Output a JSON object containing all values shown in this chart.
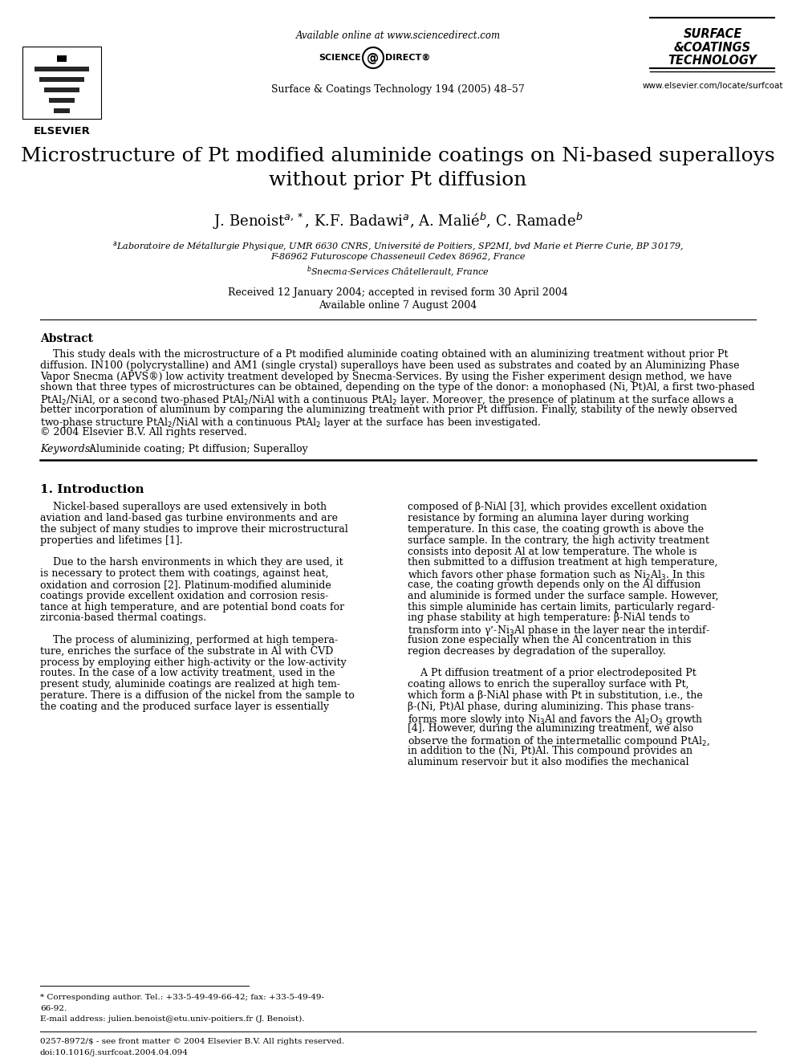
{
  "bg_color": "#ffffff",
  "title_line1": "Microstructure of Pt modified aluminide coatings on Ni-based superalloys",
  "title_line2": "without prior Pt diffusion",
  "authors": "J. Benoist$^{a,*}$, K.F. Badawi$^{a}$, A. Malié$^{b}$, C. Ramade$^{b}$",
  "affil_a": "$^{a}$Laboratoire de Métallurgie Physique, UMR 6630 CNRS, Université de Poitiers, SP2MI, bvd Marie et Pierre Curie, BP 30179,",
  "affil_a2": "F-86962 Futuroscope Chasseneuil Cedex 86962, France",
  "affil_b": "$^{b}$Snecma-Services Châtellerault, France",
  "received": "Received 12 January 2004; accepted in revised form 30 April 2004",
  "available": "Available online 7 August 2004",
  "journal": "Surface & Coatings Technology 194 (2005) 48–57",
  "available_online": "Available online at www.sciencedirect.com",
  "www": "www.elsevier.com/locate/surfcoat",
  "abstract_title": "Abstract",
  "abstract_text": "    This study deals with the microstructure of a Pt modified aluminide coating obtained with an aluminizing treatment without prior Pt diffusion. IN100 (polycrystalline) and AM1 (single crystal) superalloys have been used as substrates and coated by an Aluminizing Phase Vapor Snecma (APVS®) low activity treatment developed by Snecma-Services. By using the Fisher experiment design method, we have shown that three types of microstructures can be obtained, depending on the type of the donor: a monophased (Ni, Pt)Al, a first two-phased PtAl$_2$/NiAl, or a second two-phased PtAl$_2$/NiAl with a continuous PtAl$_2$ layer. Moreover, the presence of platinum at the surface allows a better incorporation of aluminum by comparing the aluminizing treatment with prior Pt diffusion. Finally, stability of the newly observed two-phase structure PtAl$_2$/NiAl with a continuous PtAl$_2$ layer at the surface has been investigated.",
  "abstract_copy": "© 2004 Elsevier B.V. All rights reserved.",
  "keywords_label": "Keywords:",
  "keywords_text": " Aluminide coating; Pt diffusion; Superalloy",
  "section1_title": "1. Introduction",
  "intro_col1_p1": "    Nickel-based superalloys are used extensively in both aviation and land-based gas turbine environments and are the subject of many studies to improve their microstructural properties and lifetimes [1].",
  "intro_col1_p2": "    Due to the harsh environments in which they are used, it is necessary to protect them with coatings, against heat, oxidation and corrosion [2]. Platinum-modified aluminide coatings provide excellent oxidation and corrosion resistance at high temperature, and are potential bond coats for zirconia-based thermal coatings.",
  "intro_col1_p3": "    The process of aluminizing, performed at high temperature, enriches the surface of the substrate in Al with CVD process by employing either high-activity or the low-activity routes. In the case of a low activity treatment, used in the present study, aluminide coatings are realized at high temperature. There is a diffusion of the nickel from the sample to the coating and the produced surface layer is essentially",
  "intro_col2_p1": "composed of β-NiAl [3], which provides excellent oxidation resistance by forming an alumina layer during working temperature. In this case, the coating growth is above the surface sample. In the contrary, the high activity treatment consists into deposit Al at low temperature. The whole is then submitted to a diffusion treatment at high temperature, which favors other phase formation such as Ni$_2$Al$_3$. In this case, the coating growth depends only on the Al diffusion and aluminide is formed under the surface sample. However, this simple aluminide has certain limits, particularly regarding phase stability at high temperature: β-NiAl tends to transform into γ’-Ni$_3$Al phase in the layer near the interdiffusion zone especially when the Al concentration in this region decreases by degradation of the superalloy.",
  "intro_col2_p2": "    A Pt diffusion treatment of a prior electrodeposited Pt coating allows to enrich the superalloy surface with Pt, which form a β-NiAl phase with Pt in substitution, i.e., the β-(Ni, Pt)Al phase, during aluminizing. This phase transforms more slowly into Ni$_3$Al and favors the Al$_2$O$_3$ growth [4]. However, during the aluminizing treatment, we also observe the formation of the intermetallic compound PtAl$_2$, in addition to the (Ni, Pt)Al. This compound provides an aluminum reservoir but it also modifies the mechanical",
  "footnote_star": "* Corresponding author. Tel.: +33-5-49-49-66-42; fax: +33-5-49-49-",
  "footnote_star2": "66-92.",
  "footnote_email": "E-mail address: julien.benoist@etu.univ-poitiers.fr (J. Benoist).",
  "footer_issn": "0257-8972/$ - see front matter © 2004 Elsevier B.V. All rights reserved.",
  "footer_doi": "doi:10.1016/j.surfcoat.2004.04.094",
  "science_direct": "SCIENCE",
  "direct": "DIRECT",
  "elsevier": "ELSEVIER",
  "surface": "SURFACE",
  "coatings": "&COATINGS",
  "technology": "TECHNOLOGY"
}
